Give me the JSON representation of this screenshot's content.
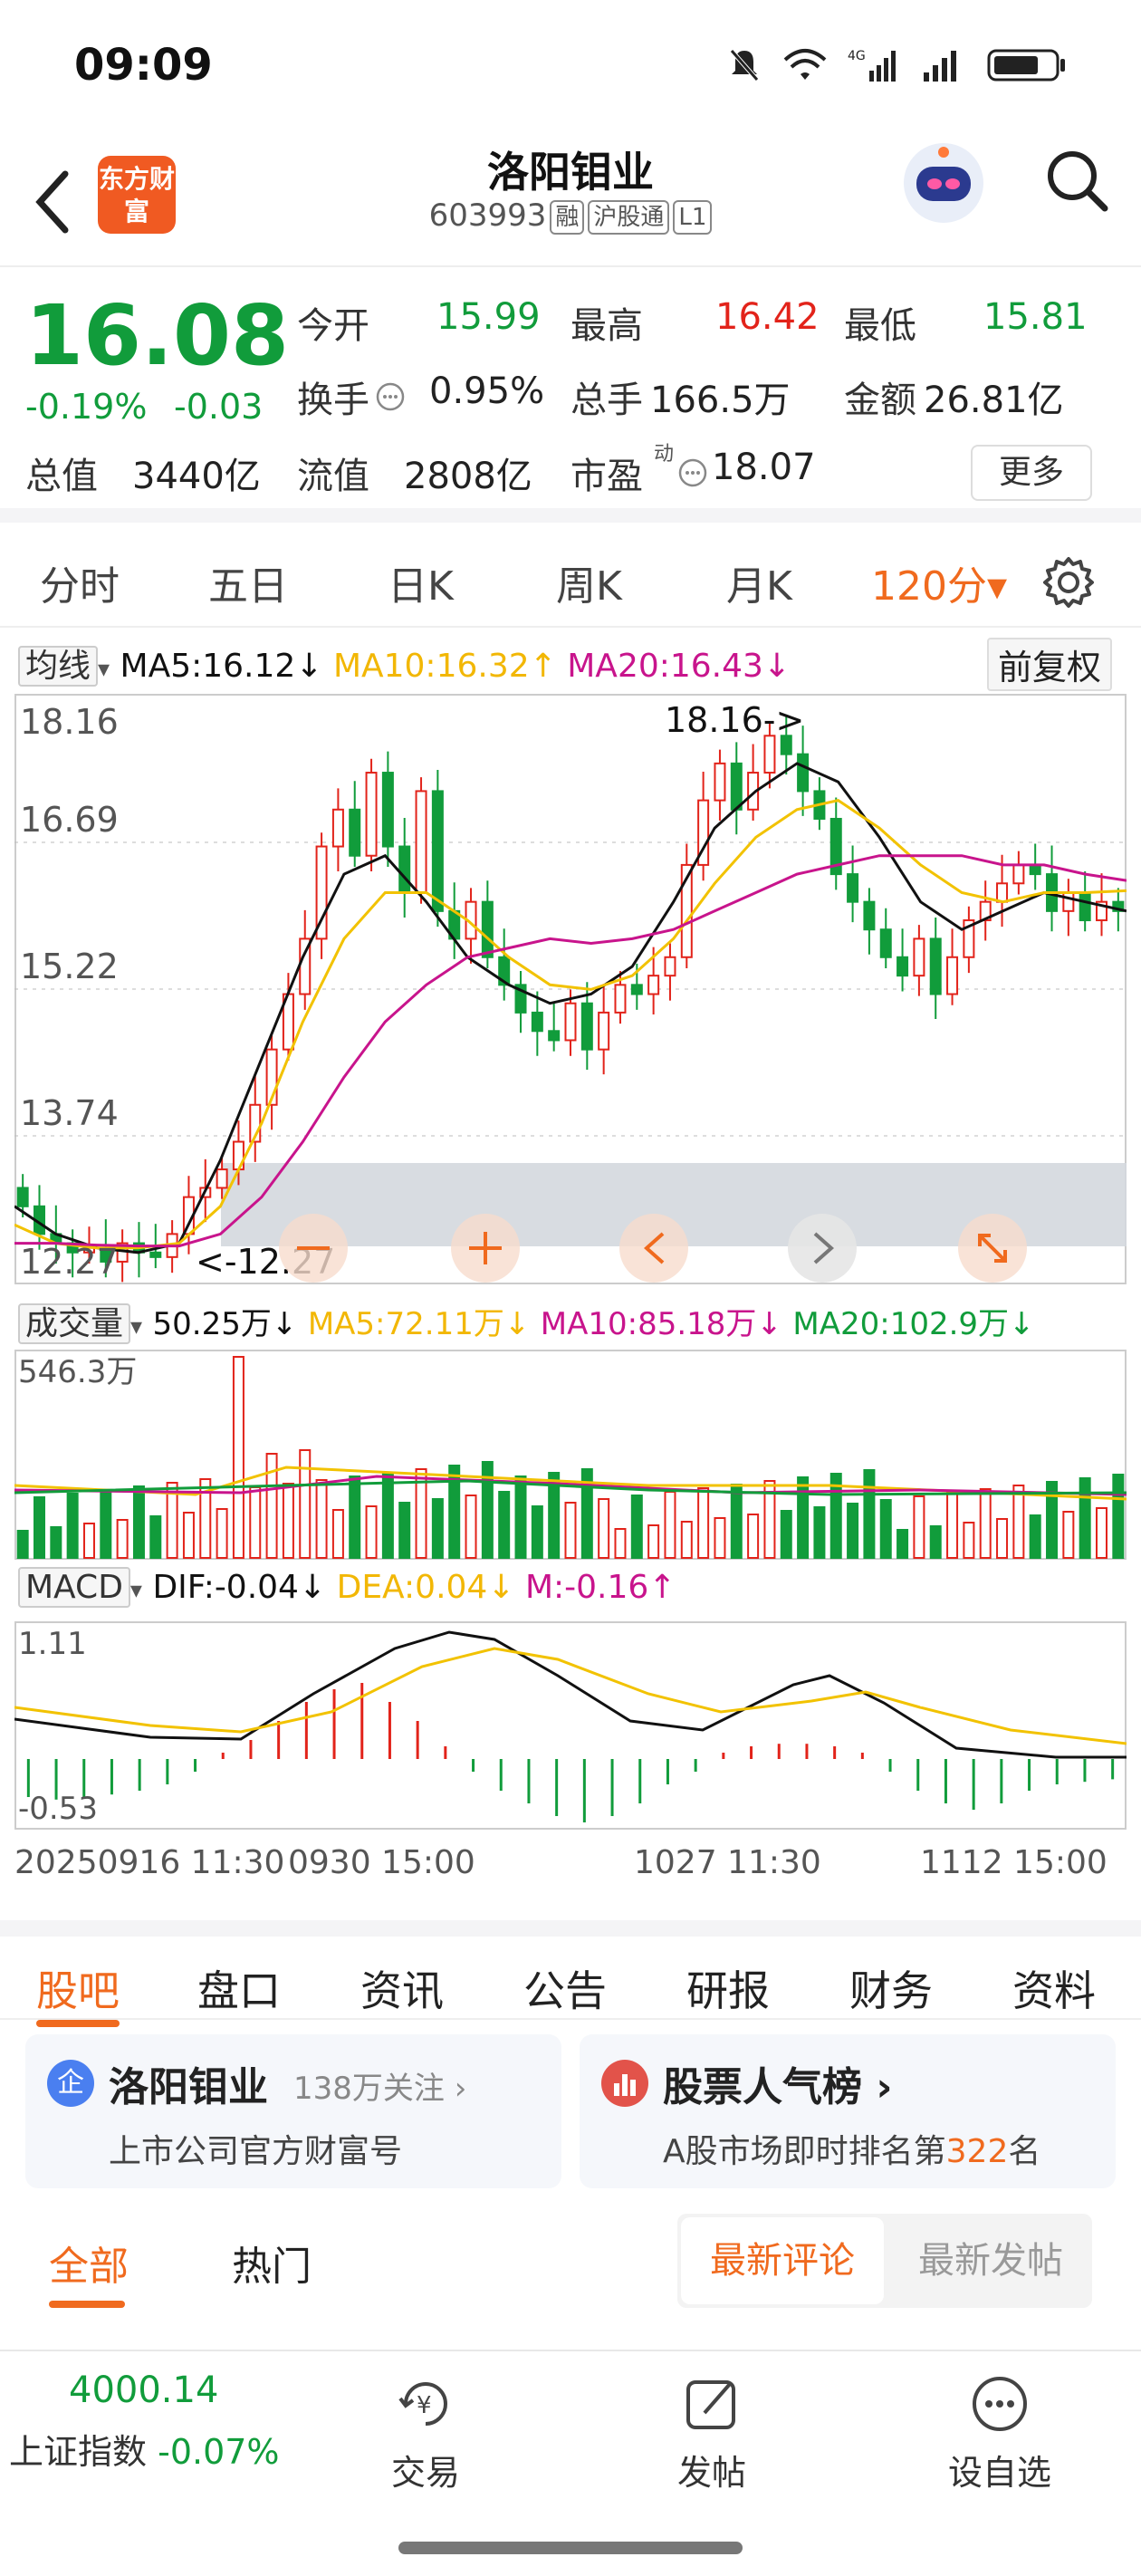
{
  "status_bar": {
    "time": "09:09",
    "network": "4G"
  },
  "header": {
    "logo_text": "东方财富",
    "stock_name": "洛阳钼业",
    "stock_code": "603993",
    "tags": [
      "融",
      "沪股通",
      "L1"
    ]
  },
  "quote": {
    "price": "16.08",
    "change_pct": "-0.19%",
    "change": "-0.03",
    "fields": [
      {
        "label": "今开",
        "value": "15.99",
        "color": "green"
      },
      {
        "label": "最高",
        "value": "16.42",
        "color": "red"
      },
      {
        "label": "最低",
        "value": "15.81",
        "color": "green"
      },
      {
        "label": "换手",
        "value": "0.95%",
        "color": "black"
      },
      {
        "label": "总手",
        "value": "166.5万",
        "color": "black"
      },
      {
        "label": "金额",
        "value": "26.81亿",
        "color": "black"
      },
      {
        "label": "总值",
        "value": "3440亿",
        "color": "black"
      },
      {
        "label": "流值",
        "value": "2808亿",
        "color": "black"
      },
      {
        "label": "市盈",
        "value": "18.07",
        "color": "black"
      }
    ],
    "pe_sup": "动",
    "more_label": "更多"
  },
  "period_tabs": [
    "分时",
    "五日",
    "日K",
    "周K",
    "月K",
    "120分▾"
  ],
  "active_period": 5,
  "ma_row": {
    "selector": "均线",
    "ma5": "MA5:16.12↓",
    "ma10": "MA10:16.32↑",
    "ma20": "MA20:16.43↓",
    "adjust_button": "前复权"
  },
  "price_axis": {
    "labels": [
      "18.16",
      "16.69",
      "15.22",
      "13.74",
      "12.27"
    ],
    "max": 18.16,
    "min": 12.27
  },
  "annotations": {
    "high": "18.16->",
    "low": "<-12.27"
  },
  "volume_row": {
    "selector": "成交量",
    "vol": "50.25万↓",
    "ma5": "MA5:72.11万↓",
    "ma10": "MA10:85.18万↓",
    "ma20": "MA20:102.9万↓",
    "axis_max": "546.3万"
  },
  "macd_row": {
    "selector": "MACD",
    "dif": "DIF:-0.04↓",
    "dea": "DEA:0.04↓",
    "m": "M:-0.16↑",
    "axis_max": "1.11",
    "axis_min": "-0.53"
  },
  "time_axis": [
    "20250916 11:30",
    "0930 15:00",
    "1027 11:30",
    "1112 15:00"
  ],
  "colors": {
    "up": "#e2231a",
    "down": "#119c3b",
    "ma5": "#111111",
    "ma10": "#f2c200",
    "ma20": "#c8148c",
    "accent": "#f06a1e"
  },
  "news_tabs": [
    "股吧",
    "盘口",
    "资讯",
    "公告",
    "研报",
    "财务",
    "资料"
  ],
  "cards": [
    {
      "title": "洛阳钼业",
      "badge": "138万关注 ›",
      "subtitle": "上市公司官方财富号",
      "icon": "企"
    },
    {
      "title": "股票人气榜 ›",
      "subtitle_prefix": "A股市场即时排名第",
      "rank": "322",
      "subtitle_suffix": "名"
    }
  ],
  "sub_tabs": {
    "all": "全部",
    "hot": "热门",
    "latest_comment": "最新评论",
    "latest_post": "最新发帖"
  },
  "bottom_bar": {
    "index_value": "4000.14",
    "index_name": "上证指数",
    "index_change": "-0.07%",
    "items": [
      "交易",
      "发帖",
      "设自选"
    ]
  },
  "chart_data": {
    "type": "candlestick",
    "ma_series": [
      {
        "name": "MA5",
        "values": [
          12.9,
          12.6,
          12.45,
          12.4,
          12.5,
          13.4,
          14.5,
          15.6,
          16.5,
          16.7,
          16.2,
          15.6,
          15.3,
          15.1,
          15.2,
          15.5,
          16.2,
          17.0,
          17.4,
          17.7,
          17.5,
          16.9,
          16.2,
          15.9,
          16.1,
          16.3,
          16.2,
          16.1
        ]
      },
      {
        "name": "MA10",
        "values": [
          12.7,
          12.5,
          12.45,
          12.45,
          12.5,
          12.9,
          13.8,
          14.9,
          15.8,
          16.3,
          16.3,
          16.0,
          15.6,
          15.3,
          15.25,
          15.4,
          15.8,
          16.4,
          16.9,
          17.2,
          17.3,
          17.0,
          16.6,
          16.3,
          16.2,
          16.3,
          16.3,
          16.32
        ]
      },
      {
        "name": "MA20",
        "values": [
          12.5,
          12.5,
          12.48,
          12.47,
          12.47,
          12.6,
          13.0,
          13.6,
          14.3,
          14.9,
          15.3,
          15.6,
          15.7,
          15.8,
          15.75,
          15.8,
          15.9,
          16.1,
          16.3,
          16.5,
          16.6,
          16.7,
          16.7,
          16.7,
          16.6,
          16.6,
          16.5,
          16.43
        ]
      }
    ]
  }
}
